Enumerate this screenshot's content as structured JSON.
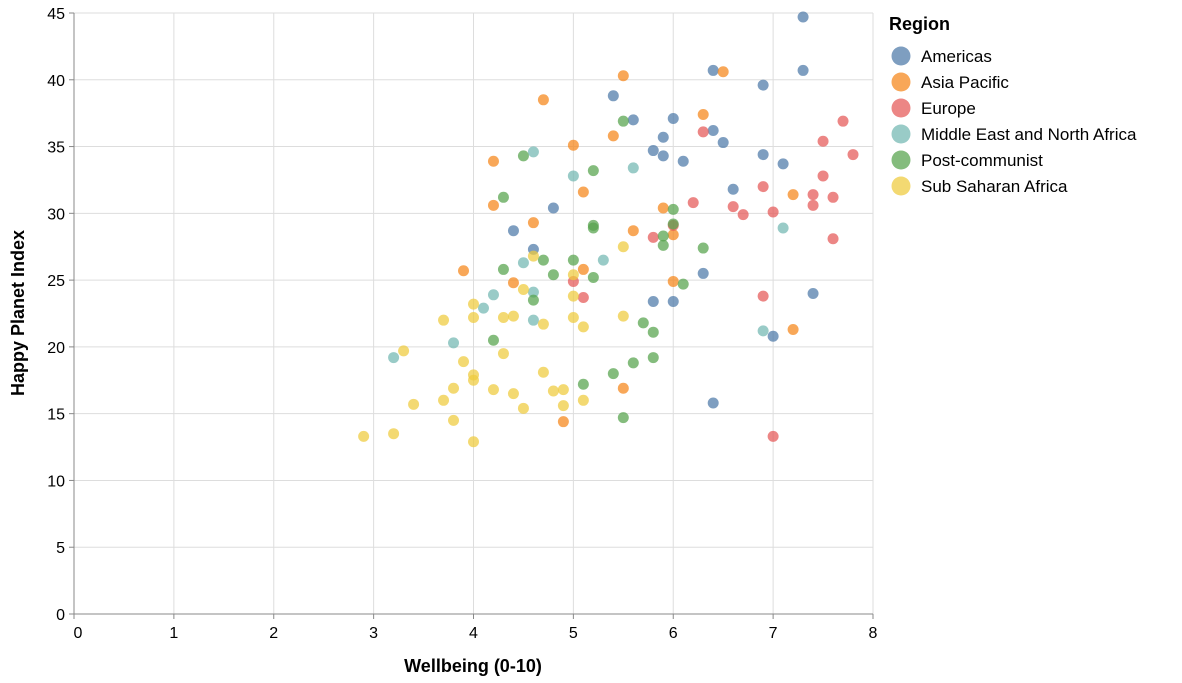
{
  "chart_data": {
    "type": "scatter",
    "xlabel": "Wellbeing (0-10)",
    "ylabel": "Happy Planet Index",
    "xlim": [
      0,
      8
    ],
    "ylim": [
      0,
      45
    ],
    "x_ticks": [
      "0",
      "1",
      "2",
      "3",
      "4",
      "5",
      "6",
      "7",
      "8"
    ],
    "y_ticks": [
      "0",
      "5",
      "10",
      "15",
      "20",
      "25",
      "30",
      "35",
      "40",
      "45"
    ],
    "grid": true,
    "legend": {
      "title": "Region",
      "placement": "right"
    },
    "series": [
      {
        "name": "Americas",
        "color": "#4c78a8",
        "points": [
          [
            7.3,
            44.7
          ],
          [
            6.4,
            40.7
          ],
          [
            7.3,
            40.7
          ],
          [
            6.9,
            39.6
          ],
          [
            5.4,
            38.8
          ],
          [
            5.6,
            37.0
          ],
          [
            6.0,
            37.1
          ],
          [
            6.4,
            36.2
          ],
          [
            5.9,
            35.7
          ],
          [
            6.5,
            35.3
          ],
          [
            5.8,
            34.7
          ],
          [
            5.9,
            34.3
          ],
          [
            6.9,
            34.4
          ],
          [
            6.1,
            33.9
          ],
          [
            7.1,
            33.7
          ],
          [
            6.6,
            31.8
          ],
          [
            4.8,
            30.4
          ],
          [
            4.4,
            28.7
          ],
          [
            4.6,
            27.3
          ],
          [
            6.3,
            25.5
          ],
          [
            5.8,
            23.4
          ],
          [
            6.0,
            23.4
          ],
          [
            7.4,
            24.0
          ],
          [
            7.0,
            20.8
          ],
          [
            6.4,
            15.8
          ]
        ]
      },
      {
        "name": "Asia Pacific",
        "color": "#f58518",
        "points": [
          [
            5.5,
            40.3
          ],
          [
            6.5,
            40.6
          ],
          [
            4.7,
            38.5
          ],
          [
            6.3,
            37.4
          ],
          [
            5.4,
            35.8
          ],
          [
            5.0,
            35.1
          ],
          [
            4.2,
            33.9
          ],
          [
            5.1,
            31.6
          ],
          [
            7.2,
            31.4
          ],
          [
            4.2,
            30.6
          ],
          [
            5.9,
            30.4
          ],
          [
            4.6,
            29.3
          ],
          [
            5.6,
            28.7
          ],
          [
            6.0,
            28.4
          ],
          [
            3.9,
            25.7
          ],
          [
            5.1,
            25.8
          ],
          [
            4.4,
            24.8
          ],
          [
            6.0,
            24.9
          ],
          [
            7.2,
            21.3
          ],
          [
            5.5,
            16.9
          ],
          [
            4.9,
            14.4
          ]
        ]
      },
      {
        "name": "Europe",
        "color": "#e45756",
        "points": [
          [
            7.7,
            36.9
          ],
          [
            6.3,
            36.1
          ],
          [
            7.5,
            35.4
          ],
          [
            7.8,
            34.4
          ],
          [
            7.5,
            32.8
          ],
          [
            6.9,
            32.0
          ],
          [
            7.4,
            31.4
          ],
          [
            7.6,
            31.2
          ],
          [
            6.2,
            30.8
          ],
          [
            6.6,
            30.5
          ],
          [
            7.4,
            30.6
          ],
          [
            7.0,
            30.1
          ],
          [
            6.7,
            29.9
          ],
          [
            6.0,
            29.1
          ],
          [
            5.8,
            28.2
          ],
          [
            7.6,
            28.1
          ],
          [
            5.0,
            24.9
          ],
          [
            5.1,
            23.7
          ],
          [
            6.9,
            23.8
          ],
          [
            7.0,
            13.3
          ]
        ]
      },
      {
        "name": "Middle East and North Africa",
        "color": "#72b7b2",
        "points": [
          [
            4.6,
            34.6
          ],
          [
            5.0,
            32.8
          ],
          [
            5.6,
            33.4
          ],
          [
            7.1,
            28.9
          ],
          [
            5.3,
            26.5
          ],
          [
            4.5,
            26.3
          ],
          [
            4.2,
            23.9
          ],
          [
            4.6,
            24.1
          ],
          [
            4.1,
            22.9
          ],
          [
            4.6,
            22.0
          ],
          [
            3.8,
            20.3
          ],
          [
            3.2,
            19.2
          ],
          [
            6.9,
            21.2
          ]
        ]
      },
      {
        "name": "Post-communist",
        "color": "#54a24b",
        "points": [
          [
            5.5,
            36.9
          ],
          [
            4.5,
            34.3
          ],
          [
            5.2,
            33.2
          ],
          [
            4.3,
            31.2
          ],
          [
            6.0,
            30.3
          ],
          [
            5.2,
            29.1
          ],
          [
            5.2,
            28.9
          ],
          [
            6.0,
            29.2
          ],
          [
            5.9,
            28.3
          ],
          [
            5.9,
            27.6
          ],
          [
            6.3,
            27.4
          ],
          [
            4.7,
            26.5
          ],
          [
            5.0,
            26.5
          ],
          [
            4.3,
            25.8
          ],
          [
            4.8,
            25.4
          ],
          [
            5.2,
            25.2
          ],
          [
            6.1,
            24.7
          ],
          [
            4.6,
            23.5
          ],
          [
            5.7,
            21.8
          ],
          [
            5.8,
            21.1
          ],
          [
            4.2,
            20.5
          ],
          [
            5.6,
            18.8
          ],
          [
            5.8,
            19.2
          ],
          [
            5.4,
            18.0
          ],
          [
            5.1,
            17.2
          ],
          [
            5.5,
            14.7
          ]
        ]
      },
      {
        "name": "Sub Saharan Africa",
        "color": "#eeca3b",
        "points": [
          [
            5.5,
            27.5
          ],
          [
            4.6,
            26.8
          ],
          [
            5.0,
            25.4
          ],
          [
            5.0,
            23.8
          ],
          [
            4.0,
            23.2
          ],
          [
            4.5,
            24.3
          ],
          [
            3.7,
            22.0
          ],
          [
            4.0,
            22.2
          ],
          [
            4.3,
            22.2
          ],
          [
            4.4,
            22.3
          ],
          [
            4.7,
            21.7
          ],
          [
            5.0,
            22.2
          ],
          [
            5.1,
            21.5
          ],
          [
            5.5,
            22.3
          ],
          [
            3.3,
            19.7
          ],
          [
            4.3,
            19.5
          ],
          [
            3.9,
            18.9
          ],
          [
            4.0,
            17.9
          ],
          [
            4.0,
            17.5
          ],
          [
            4.7,
            18.1
          ],
          [
            3.8,
            16.9
          ],
          [
            4.2,
            16.8
          ],
          [
            4.4,
            16.5
          ],
          [
            4.8,
            16.7
          ],
          [
            4.9,
            16.8
          ],
          [
            3.7,
            16.0
          ],
          [
            3.4,
            15.7
          ],
          [
            4.9,
            15.6
          ],
          [
            4.5,
            15.4
          ],
          [
            5.1,
            16.0
          ],
          [
            3.8,
            14.5
          ],
          [
            3.2,
            13.5
          ],
          [
            2.9,
            13.3
          ],
          [
            4.0,
            12.9
          ]
        ]
      }
    ]
  }
}
